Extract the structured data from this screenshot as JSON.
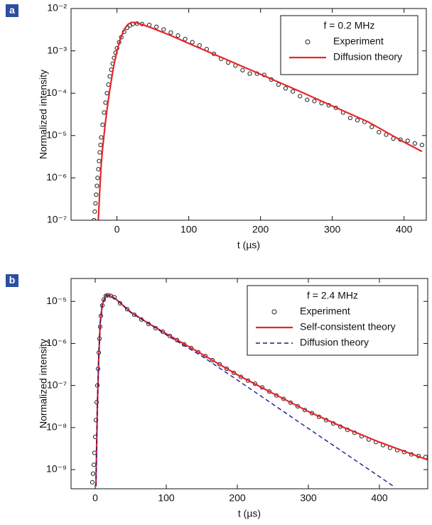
{
  "chart_data": [
    {
      "type": "line",
      "panel_label": "a",
      "ylabel": "Normalized intensity",
      "xlabel": "t (µs)",
      "legend_title": "f = 0.2 MHz",
      "yscale": "log",
      "xlim": [
        -64,
        431
      ],
      "xticks": [
        0,
        100,
        200,
        300,
        400
      ],
      "ylim": [
        1e-07,
        0.01
      ],
      "yticks": [
        {
          "value": 1e-07,
          "label": "10⁻⁷"
        },
        {
          "value": 1e-06,
          "label": "10⁻⁶"
        },
        {
          "value": 1e-05,
          "label": "10⁻⁵"
        },
        {
          "value": 0.0001,
          "label": "10⁻⁴"
        },
        {
          "value": 0.001,
          "label": "10⁻³"
        },
        {
          "value": 0.01,
          "label": "10⁻²"
        }
      ],
      "series": [
        {
          "name": "Experiment",
          "style": "markers",
          "color": "#222222",
          "x": [
            -32,
            -31,
            -30,
            -29,
            -28,
            -27,
            -26,
            -25,
            -24,
            -23,
            -22,
            -20,
            -18,
            -16,
            -14,
            -12,
            -10,
            -8,
            -6,
            -4,
            -2,
            0,
            3,
            6,
            10,
            14,
            18,
            22,
            28,
            35,
            45,
            55,
            65,
            75,
            85,
            95,
            105,
            115,
            125,
            135,
            145,
            155,
            165,
            175,
            185,
            195,
            205,
            215,
            225,
            235,
            245,
            255,
            265,
            275,
            285,
            295,
            305,
            315,
            325,
            335,
            345,
            355,
            365,
            375,
            385,
            395,
            405,
            415,
            425
          ],
          "values": [
            1e-07,
            1.6e-07,
            2.5e-07,
            4e-07,
            6.5e-07,
            1e-06,
            1.6e-06,
            2.5e-06,
            4e-06,
            6e-06,
            9e-06,
            1.8e-05,
            3.5e-05,
            6e-05,
            0.0001,
            0.00016,
            0.00025,
            0.00036,
            0.0005,
            0.00068,
            0.0009,
            0.00115,
            0.0016,
            0.0021,
            0.0028,
            0.0035,
            0.004,
            0.0043,
            0.0044,
            0.0043,
            0.0041,
            0.0037,
            0.0032,
            0.0027,
            0.0023,
            0.0019,
            0.0016,
            0.00135,
            0.0011,
            0.00085,
            0.00065,
            0.00053,
            0.00045,
            0.00035,
            0.00029,
            0.00029,
            0.00027,
            0.00021,
            0.00016,
            0.00013,
            0.00011,
            8.5e-05,
            7e-05,
            6.5e-05,
            5.8e-05,
            5.2e-05,
            4.5e-05,
            3.5e-05,
            2.6e-05,
            2.3e-05,
            2.1e-05,
            1.6e-05,
            1.2e-05,
            1.05e-05,
            8.5e-06,
            8e-06,
            7.5e-06,
            6.5e-06,
            6e-06
          ]
        },
        {
          "name": "Diffusion theory",
          "style": "line",
          "color": "#e8262a",
          "x": [
            -26,
            -24,
            -22,
            -20,
            -17,
            -14,
            -10,
            -5,
            0,
            5,
            10,
            15,
            20,
            25,
            35,
            50,
            75,
            100,
            150,
            200,
            250,
            300,
            350,
            400,
            425
          ],
          "values": [
            1e-07,
            5e-07,
            2e-06,
            5e-06,
            1.5e-05,
            4e-05,
            0.00012,
            0.0004,
            0.001,
            0.002,
            0.0032,
            0.0042,
            0.0047,
            0.0047,
            0.0042,
            0.0034,
            0.0023,
            0.0015,
            0.00065,
            0.00028,
            0.00012,
            5e-05,
            2.1e-05,
            7e-06,
            4.2e-06
          ]
        }
      ]
    },
    {
      "type": "line",
      "panel_label": "b",
      "ylabel": "Normalized intensity",
      "xlabel": "t (µs)",
      "legend_title": "f = 2.4 MHz",
      "yscale": "log",
      "xlim": [
        -34,
        468
      ],
      "xticks": [
        0,
        100,
        200,
        300,
        400
      ],
      "ylim": [
        3.5e-10,
        3.5e-05
      ],
      "yticks": [
        {
          "value": 1e-09,
          "label": "10⁻⁹"
        },
        {
          "value": 1e-08,
          "label": "10⁻⁸"
        },
        {
          "value": 1e-07,
          "label": "10⁻⁷"
        },
        {
          "value": 1e-06,
          "label": "10⁻⁶"
        },
        {
          "value": 1e-05,
          "label": "10⁻⁵"
        }
      ],
      "series": [
        {
          "name": "Experiment",
          "style": "markers",
          "color": "#222222",
          "x": [
            -4,
            -3,
            -2,
            -1,
            0,
            1,
            2,
            3,
            4,
            5,
            6,
            7,
            8,
            10,
            12,
            15,
            18,
            22,
            27,
            35,
            45,
            55,
            65,
            75,
            85,
            95,
            105,
            115,
            125,
            135,
            145,
            155,
            165,
            175,
            185,
            195,
            205,
            215,
            225,
            235,
            245,
            255,
            265,
            275,
            285,
            295,
            305,
            315,
            325,
            335,
            345,
            355,
            365,
            375,
            385,
            395,
            405,
            415,
            425,
            435,
            445,
            455,
            465
          ],
          "values": [
            5e-10,
            8e-10,
            1.3e-09,
            2.5e-09,
            6e-09,
            1.5e-08,
            4e-08,
            1e-07,
            2.5e-07,
            6e-07,
            1.3e-06,
            2.5e-06,
            4.5e-06,
            8e-06,
            1.1e-05,
            1.35e-05,
            1.4e-05,
            1.35e-05,
            1.25e-05,
            9e-06,
            6.5e-06,
            4.8e-06,
            3.7e-06,
            2.9e-06,
            2.3e-06,
            1.9e-06,
            1.5e-06,
            1.2e-06,
            9.5e-07,
            7.8e-07,
            6.2e-07,
            5e-07,
            4e-07,
            3.2e-07,
            2.5e-07,
            2e-07,
            1.6e-07,
            1.3e-07,
            1.1e-07,
            9e-08,
            7.2e-08,
            5.8e-08,
            4.8e-08,
            3.9e-08,
            3.2e-08,
            2.6e-08,
            2.2e-08,
            1.8e-08,
            1.5e-08,
            1.25e-08,
            1.05e-08,
            8.8e-09,
            7.5e-09,
            6.2e-09,
            5.2e-09,
            4.5e-09,
            3.8e-09,
            3.3e-09,
            2.9e-09,
            2.6e-09,
            2.3e-09,
            2.1e-09,
            2e-09
          ]
        },
        {
          "name": "Self-consistent theory",
          "style": "line",
          "color": "#e8262a",
          "x": [
            1,
            3,
            5,
            7,
            10,
            15,
            20,
            30,
            50,
            75,
            100,
            150,
            200,
            250,
            300,
            350,
            400,
            468
          ],
          "values": [
            4e-10,
            3e-08,
            5e-07,
            3e-06,
            8.5e-06,
            1.4e-05,
            1.4e-05,
            1.1e-05,
            5.5e-06,
            3e-06,
            1.7e-06,
            5.6e-07,
            1.8e-07,
            6.5e-08,
            2.4e-08,
            1e-08,
            4.5e-09,
            1.7e-09
          ]
        },
        {
          "name": "Diffusion theory",
          "style": "dashed",
          "color": "#1a1a8c",
          "x": [
            1,
            3,
            5,
            7,
            10,
            15,
            20,
            30,
            50,
            75,
            100,
            150,
            200,
            300,
            400,
            420
          ],
          "values": [
            4e-10,
            3e-08,
            5e-07,
            3e-06,
            8.5e-06,
            1.4e-05,
            1.4e-05,
            1.1e-05,
            5.5e-06,
            3e-06,
            1.6e-06,
            5e-07,
            1.35e-07,
            9.5e-09,
            6.8e-10,
            4e-10
          ]
        }
      ]
    }
  ]
}
